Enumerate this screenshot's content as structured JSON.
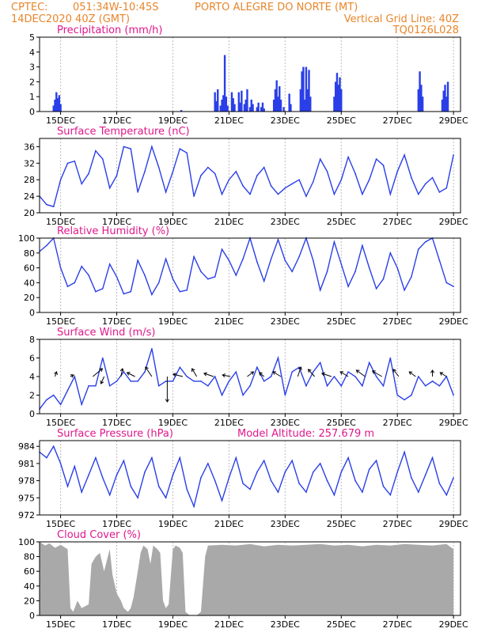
{
  "header": {
    "source": "CPTEC:",
    "coords": "051:34W-10:45S",
    "station": "PORTO ALEGRE DO NORTE (MT)",
    "run": "14DEC2020 40Z (GMT)",
    "grid_note": "Vertical Grid Line: 40Z",
    "code": "TQ0126L028"
  },
  "colors": {
    "header": "#e8852a",
    "title": "#e0188c",
    "line": "#2a3fe8",
    "cloud": "#a9a9a9",
    "grid": "#bdbdbd"
  },
  "x_tick_labels": [
    "15DEC",
    "17DEC",
    "19DEC",
    "21DEC",
    "23DEC",
    "25DEC",
    "27DEC",
    "29DEC"
  ],
  "chart_data": [
    {
      "id": "precip",
      "type": "bar",
      "title": "Precipitation (mm/h)",
      "xlabel": "",
      "ylabel": "",
      "ylim": [
        0,
        5
      ],
      "yticks": [
        0,
        1,
        2,
        3,
        4,
        5
      ],
      "x_unit": "day offset",
      "x": [
        0.5,
        0.55,
        0.6,
        0.65,
        0.7,
        0.75,
        5.05,
        6.25,
        6.3,
        6.35,
        6.45,
        6.5,
        6.55,
        6.6,
        6.65,
        6.7,
        6.85,
        6.9,
        6.95,
        7.1,
        7.15,
        7.2,
        7.3,
        7.35,
        7.4,
        7.5,
        7.55,
        7.6,
        7.75,
        7.8,
        7.9,
        7.95,
        8.0,
        8.35,
        8.4,
        8.45,
        8.5,
        8.55,
        8.6,
        8.7,
        8.9,
        8.95,
        9.3,
        9.35,
        9.4,
        9.45,
        9.5,
        9.55,
        9.6,
        9.65,
        10.5,
        10.55,
        10.6,
        10.65,
        10.7,
        10.75,
        13.5,
        13.55,
        13.6,
        13.65,
        14.35,
        14.4,
        14.45,
        14.5,
        14.55
      ],
      "values": [
        0.4,
        0.8,
        1.3,
        0.9,
        1.1,
        0.5,
        0.1,
        1.3,
        0.7,
        1.5,
        0.4,
        0.8,
        1.1,
        3.8,
        1.0,
        0.4,
        1.3,
        0.9,
        0.5,
        1.3,
        0.6,
        1.4,
        0.5,
        0.8,
        1.5,
        0.3,
        0.8,
        0.5,
        0.3,
        0.6,
        0.3,
        0.6,
        0.2,
        0.8,
        1.5,
        2.1,
        1.0,
        1.7,
        0.8,
        0.3,
        1.2,
        0.5,
        1.5,
        2.7,
        3.0,
        0.8,
        3.0,
        1.5,
        2.8,
        1.0,
        1.0,
        2.0,
        2.6,
        1.8,
        2.3,
        1.5,
        1.5,
        2.7,
        1.8,
        1.0,
        0.8,
        1.4,
        1.8,
        1.0,
        2.0
      ]
    },
    {
      "id": "temp",
      "type": "line",
      "title": "Surface Temperature (nC)",
      "xlabel": "",
      "ylabel": "",
      "ylim": [
        20,
        38
      ],
      "yticks": [
        20,
        24,
        28,
        32,
        36
      ],
      "x_unit": "day offset",
      "x": [
        0.0,
        0.25,
        0.5,
        0.75,
        1.0,
        1.25,
        1.5,
        1.75,
        2.0,
        2.25,
        2.5,
        2.75,
        3.0,
        3.25,
        3.5,
        3.75,
        4.0,
        4.25,
        4.5,
        4.75,
        5.0,
        5.25,
        5.5,
        5.75,
        6.0,
        6.25,
        6.5,
        6.75,
        7.0,
        7.25,
        7.5,
        7.75,
        8.0,
        8.25,
        8.5,
        8.75,
        9.0,
        9.25,
        9.5,
        9.75,
        10.0,
        10.25,
        10.5,
        10.75,
        11.0,
        11.25,
        11.5,
        11.75,
        12.0,
        12.25,
        12.5,
        12.75,
        13.0,
        13.25,
        13.5,
        13.75,
        14.0,
        14.25,
        14.5,
        14.75
      ],
      "values": [
        24.0,
        22.0,
        21.5,
        28.0,
        32.0,
        32.5,
        27.0,
        29.5,
        35.0,
        33.0,
        26.0,
        29.0,
        36.0,
        35.5,
        25.0,
        30.0,
        36.0,
        31.0,
        25.0,
        30.0,
        35.5,
        34.5,
        24.0,
        29.0,
        31.0,
        29.5,
        24.5,
        28.0,
        30.0,
        26.5,
        24.5,
        29.0,
        31.0,
        26.5,
        24.5,
        26.0,
        27.0,
        28.0,
        24.0,
        27.5,
        33.0,
        30.0,
        24.5,
        28.0,
        33.5,
        29.5,
        24.5,
        28.0,
        33.0,
        31.5,
        24.5,
        30.0,
        34.0,
        28.5,
        24.5,
        27.0,
        28.5,
        25.0,
        26.0,
        34.0
      ]
    },
    {
      "id": "rh",
      "type": "line",
      "title": "Relative Humidity (%)",
      "xlabel": "",
      "ylabel": "",
      "ylim": [
        0,
        100
      ],
      "yticks": [
        0,
        20,
        40,
        60,
        80,
        100
      ],
      "x_unit": "day offset",
      "x": [
        0.0,
        0.25,
        0.5,
        0.75,
        1.0,
        1.25,
        1.5,
        1.75,
        2.0,
        2.25,
        2.5,
        2.75,
        3.0,
        3.25,
        3.5,
        3.75,
        4.0,
        4.25,
        4.5,
        4.75,
        5.0,
        5.25,
        5.5,
        5.75,
        6.0,
        6.25,
        6.5,
        6.75,
        7.0,
        7.25,
        7.5,
        7.75,
        8.0,
        8.25,
        8.5,
        8.75,
        9.0,
        9.25,
        9.5,
        9.75,
        10.0,
        10.25,
        10.5,
        10.75,
        11.0,
        11.25,
        11.5,
        11.75,
        12.0,
        12.25,
        12.5,
        12.75,
        13.0,
        13.25,
        13.5,
        13.75,
        14.0,
        14.25,
        14.5,
        14.75
      ],
      "values": [
        82.0,
        90.0,
        100.0,
        60.0,
        35.0,
        40.0,
        62.0,
        50.0,
        28.0,
        32.0,
        65.0,
        48.0,
        25.0,
        28.0,
        70.0,
        50.0,
        24.0,
        40.0,
        72.0,
        45.0,
        28.0,
        30.0,
        75.0,
        55.0,
        45.0,
        48.0,
        85.0,
        70.0,
        50.0,
        72.0,
        100.0,
        68.0,
        42.0,
        72.0,
        98.0,
        70.0,
        55.0,
        75.0,
        100.0,
        70.0,
        30.0,
        55.0,
        95.0,
        65.0,
        35.0,
        55.0,
        90.0,
        60.0,
        32.0,
        45.0,
        80.0,
        60.0,
        30.0,
        48.0,
        85.0,
        95.0,
        100.0,
        70.0,
        40.0,
        35.0
      ]
    },
    {
      "id": "wind",
      "type": "line",
      "title": "Surface Wind (m/s)",
      "xlabel": "",
      "ylabel": "",
      "ylim": [
        0,
        8
      ],
      "yticks": [
        0,
        2,
        4,
        6,
        8
      ],
      "x_unit": "day offset",
      "x": [
        0.0,
        0.25,
        0.5,
        0.75,
        1.0,
        1.25,
        1.5,
        1.75,
        2.0,
        2.25,
        2.5,
        2.75,
        3.0,
        3.25,
        3.5,
        3.75,
        4.0,
        4.25,
        4.5,
        4.75,
        5.0,
        5.25,
        5.5,
        5.75,
        6.0,
        6.25,
        6.5,
        6.75,
        7.0,
        7.25,
        7.5,
        7.75,
        8.0,
        8.25,
        8.5,
        8.75,
        9.0,
        9.25,
        9.5,
        9.75,
        10.0,
        10.25,
        10.5,
        10.75,
        11.0,
        11.25,
        11.5,
        11.75,
        12.0,
        12.25,
        12.5,
        12.75,
        13.0,
        13.25,
        13.5,
        13.75,
        14.0,
        14.25,
        14.5,
        14.75
      ],
      "values": [
        0.5,
        1.5,
        2.0,
        1.0,
        2.5,
        4.0,
        1.0,
        3.0,
        3.0,
        6.0,
        3.0,
        3.5,
        4.5,
        3.5,
        3.5,
        4.5,
        7.0,
        3.0,
        3.5,
        3.5,
        5.0,
        4.0,
        3.5,
        3.5,
        3.0,
        4.0,
        2.0,
        3.5,
        4.5,
        2.0,
        3.0,
        5.0,
        3.5,
        4.0,
        6.0,
        2.0,
        4.5,
        5.0,
        3.0,
        4.5,
        5.5,
        3.0,
        4.0,
        3.0,
        4.5,
        4.0,
        3.0,
        5.5,
        4.0,
        3.0,
        6.0,
        2.0,
        1.5,
        2.0,
        4.0,
        3.0,
        3.5,
        3.0,
        4.0,
        2.0
      ],
      "vectors": [
        {
          "x": 0.55,
          "u": 0.2,
          "v": 0.6
        },
        {
          "x": 1.1,
          "u": 0.4,
          "v": 0.2
        },
        {
          "x": 1.9,
          "u": 1.2,
          "v": 1.0
        },
        {
          "x": 2.3,
          "u": -0.4,
          "v": -0.9
        },
        {
          "x": 2.9,
          "u": 0.2,
          "v": 1.0
        },
        {
          "x": 3.4,
          "u": -1.0,
          "v": 0.5
        },
        {
          "x": 4.0,
          "u": -0.8,
          "v": 1.2
        },
        {
          "x": 4.55,
          "u": 0.0,
          "v": -3.2
        },
        {
          "x": 5.1,
          "u": -1.2,
          "v": 0.3
        },
        {
          "x": 5.6,
          "u": -0.6,
          "v": 1.0
        },
        {
          "x": 6.2,
          "u": -1.2,
          "v": 0.4
        },
        {
          "x": 6.8,
          "u": -1.0,
          "v": 0.2
        },
        {
          "x": 7.4,
          "u": 0.8,
          "v": 0.6
        },
        {
          "x": 8.0,
          "u": -0.6,
          "v": 0.5
        },
        {
          "x": 8.6,
          "u": -1.0,
          "v": 0.6
        },
        {
          "x": 9.2,
          "u": 0.4,
          "v": 1.2
        },
        {
          "x": 9.8,
          "u": -0.8,
          "v": 0.9
        },
        {
          "x": 10.4,
          "u": -1.2,
          "v": 0.4
        },
        {
          "x": 11.0,
          "u": -1.0,
          "v": 0.6
        },
        {
          "x": 11.6,
          "u": -1.1,
          "v": 0.8
        },
        {
          "x": 12.2,
          "u": -1.2,
          "v": 0.7
        },
        {
          "x": 12.8,
          "u": -0.7,
          "v": 0.9
        },
        {
          "x": 13.4,
          "u": -0.8,
          "v": 0.6
        },
        {
          "x": 14.0,
          "u": 0.0,
          "v": 0.8
        },
        {
          "x": 14.5,
          "u": -0.8,
          "v": 0.5
        }
      ]
    },
    {
      "id": "pres",
      "type": "line",
      "title": "Surface Pressure (hPa)",
      "subtitle": "Model Altitude: 257.679 m",
      "xlabel": "",
      "ylabel": "",
      "ylim": [
        972,
        985
      ],
      "yticks": [
        972,
        975,
        978,
        981,
        984
      ],
      "x_unit": "day offset",
      "x": [
        0.0,
        0.25,
        0.5,
        0.75,
        1.0,
        1.25,
        1.5,
        1.75,
        2.0,
        2.25,
        2.5,
        2.75,
        3.0,
        3.25,
        3.5,
        3.75,
        4.0,
        4.25,
        4.5,
        4.75,
        5.0,
        5.25,
        5.5,
        5.75,
        6.0,
        6.25,
        6.5,
        6.75,
        7.0,
        7.25,
        7.5,
        7.75,
        8.0,
        8.25,
        8.5,
        8.75,
        9.0,
        9.25,
        9.5,
        9.75,
        10.0,
        10.25,
        10.5,
        10.75,
        11.0,
        11.25,
        11.5,
        11.75,
        12.0,
        12.25,
        12.5,
        12.75,
        13.0,
        13.25,
        13.5,
        13.75,
        14.0,
        14.25,
        14.5,
        14.75
      ],
      "values": [
        983.0,
        982.0,
        984.0,
        981.0,
        977.0,
        980.5,
        976.0,
        979.0,
        982.0,
        978.5,
        975.5,
        979.0,
        981.5,
        977.0,
        975.0,
        979.5,
        982.0,
        977.0,
        975.0,
        979.0,
        982.0,
        976.5,
        973.5,
        978.5,
        981.0,
        978.0,
        974.5,
        978.5,
        982.0,
        977.5,
        976.5,
        979.5,
        981.5,
        978.0,
        976.0,
        979.5,
        981.5,
        977.5,
        976.0,
        979.5,
        981.0,
        978.0,
        975.5,
        979.5,
        982.0,
        978.0,
        976.0,
        980.0,
        981.5,
        977.0,
        975.5,
        979.5,
        983.0,
        978.5,
        976.0,
        979.0,
        982.0,
        977.5,
        975.5,
        978.5
      ]
    },
    {
      "id": "cloud",
      "type": "area",
      "title": "Cloud Cover (%)",
      "xlabel": "",
      "ylabel": "",
      "ylim": [
        0,
        100
      ],
      "yticks": [
        0,
        20,
        40,
        60,
        80,
        100
      ],
      "x_unit": "day offset",
      "x": [
        0.0,
        0.2,
        0.35,
        0.55,
        0.75,
        1.0,
        1.1,
        1.2,
        1.35,
        1.5,
        1.75,
        1.85,
        2.0,
        2.15,
        2.3,
        2.5,
        2.6,
        2.75,
        2.9,
        3.0,
        3.15,
        3.25,
        3.35,
        3.5,
        3.6,
        3.7,
        3.85,
        3.95,
        4.05,
        4.2,
        4.3,
        4.4,
        4.5,
        4.6,
        4.75,
        4.85,
        5.0,
        5.1,
        5.2,
        5.35,
        5.5,
        5.6,
        5.75,
        5.9,
        6.0,
        6.5,
        7.0,
        7.5,
        8.0,
        8.5,
        9.0,
        9.5,
        10.0,
        10.5,
        11.0,
        11.5,
        12.0,
        12.5,
        13.0,
        13.5,
        14.0,
        14.5,
        14.75
      ],
      "values": [
        100.0,
        95.0,
        98.0,
        92.0,
        96.0,
        90.0,
        10.0,
        5.0,
        20.0,
        10.0,
        15.0,
        70.0,
        80.0,
        85.0,
        60.0,
        90.0,
        55.0,
        30.0,
        20.0,
        10.0,
        5.0,
        10.0,
        25.0,
        60.0,
        85.0,
        95.0,
        90.0,
        70.0,
        95.0,
        90.0,
        85.0,
        20.0,
        10.0,
        15.0,
        90.0,
        95.0,
        92.0,
        85.0,
        5.0,
        0.0,
        0.0,
        0.0,
        5.0,
        80.0,
        95.0,
        96.0,
        95.0,
        97.0,
        94.0,
        96.0,
        95.0,
        96.0,
        97.0,
        95.0,
        96.0,
        94.0,
        96.0,
        95.0,
        97.0,
        96.0,
        95.0,
        97.0,
        90.0
      ]
    }
  ]
}
